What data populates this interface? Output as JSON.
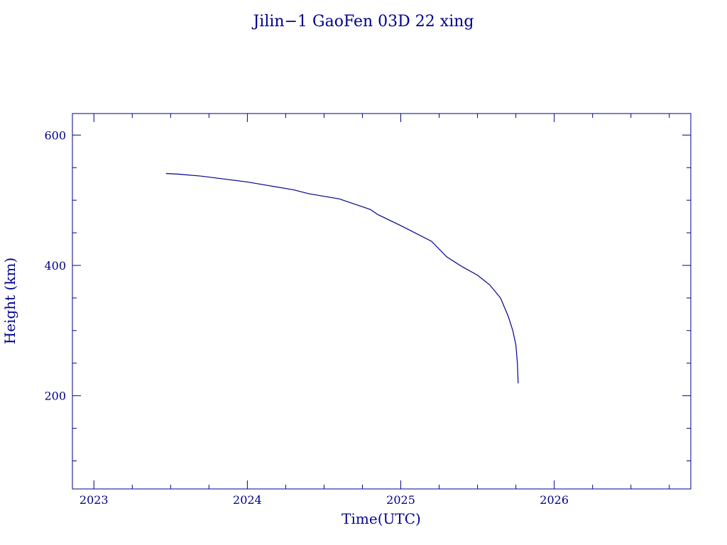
{
  "chart_data": {
    "type": "line",
    "title": "Jilin−1 GaoFen 03D 22 xing",
    "xlabel": "Time(UTC)",
    "ylabel": "Height (km)",
    "xlim": [
      2022.86,
      2026.89
    ],
    "ylim": [
      57,
      633
    ],
    "x_tick_labels": [
      "2023",
      "2024",
      "2025",
      "2026"
    ],
    "y_tick_labels": [
      "200",
      "400",
      "600"
    ],
    "grid": false,
    "color": "#00008b",
    "series": [
      {
        "x": [
          2023.47,
          2023.55,
          2023.7,
          2023.8,
          2024.0,
          2024.15,
          2024.3,
          2024.4,
          2024.6,
          2024.8,
          2024.85,
          2025.0,
          2025.2,
          2025.3,
          2025.4,
          2025.5,
          2025.58,
          2025.65,
          2025.7,
          2025.73,
          2025.75,
          2025.76,
          2025.765
        ],
        "y": [
          541,
          540,
          537,
          534,
          528,
          522,
          516,
          510,
          502,
          486,
          478,
          461,
          437,
          413,
          398,
          385,
          370,
          350,
          322,
          300,
          278,
          250,
          219
        ]
      }
    ]
  }
}
